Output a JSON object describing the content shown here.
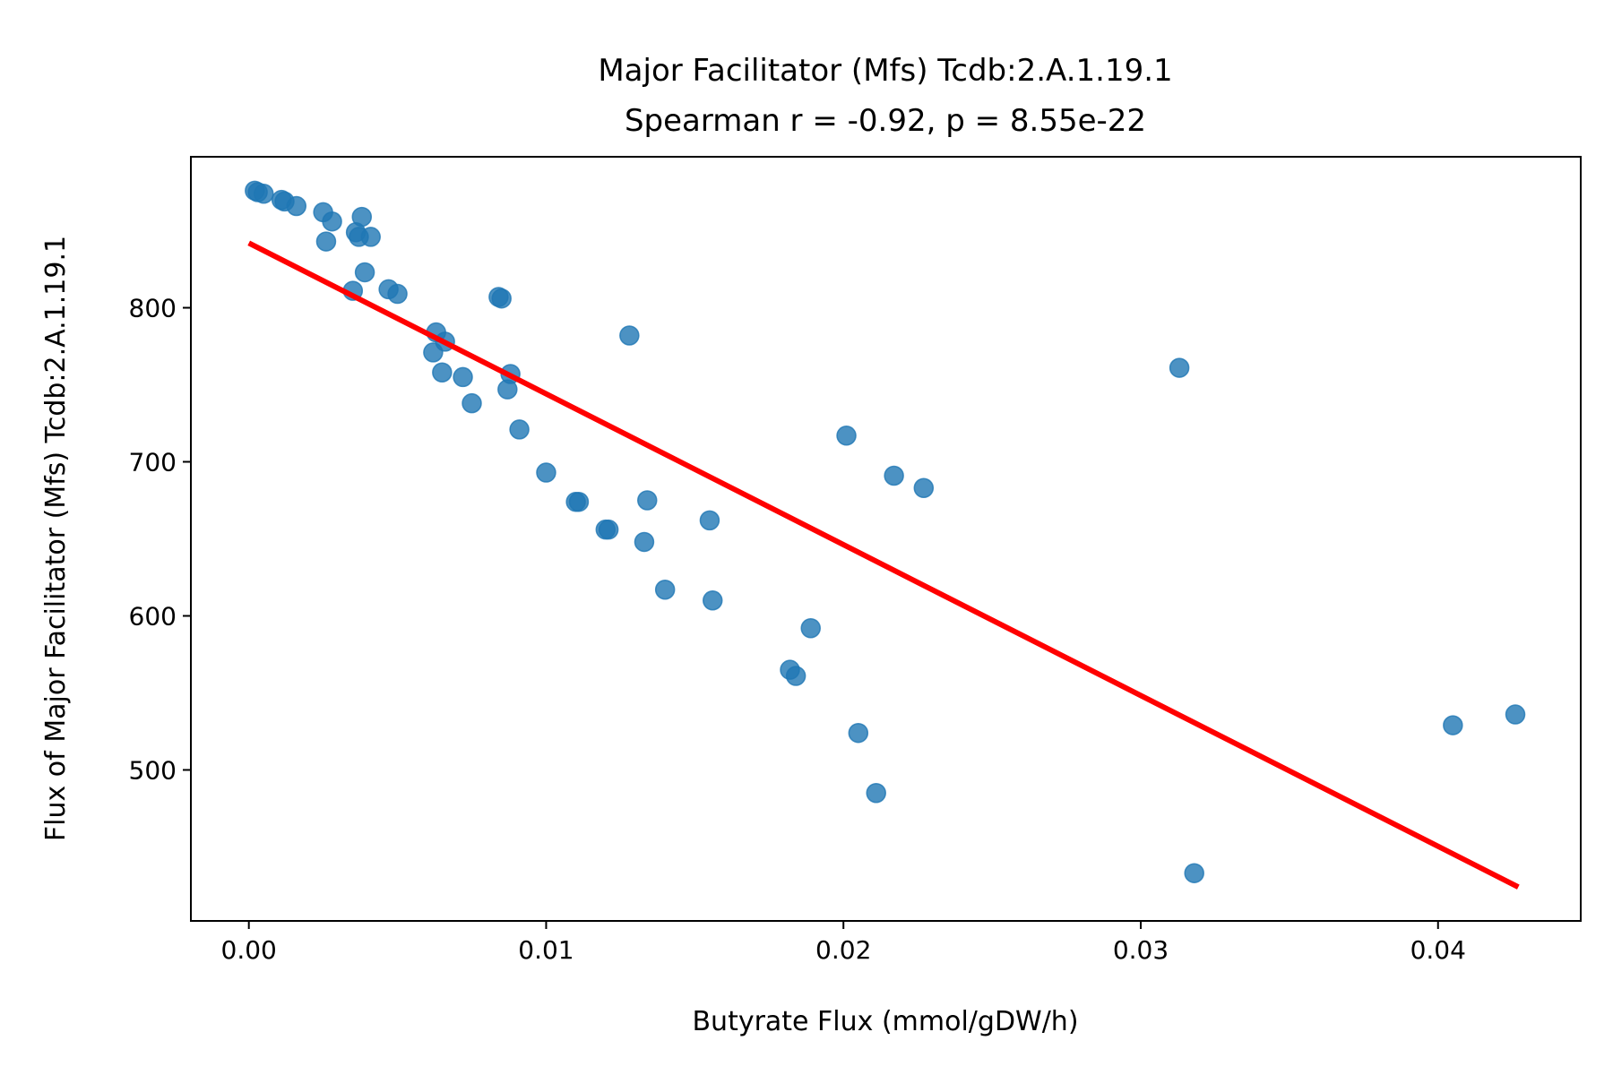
{
  "chart_data": {
    "type": "scatter",
    "title": "Major Facilitator (Mfs) Tcdb:2.A.1.19.1",
    "subtitle": "Spearman r = -0.92, p = 8.55e-22",
    "xlabel": "Butyrate Flux (mmol/gDW/h)",
    "ylabel": "Flux of Major Facilitator (Mfs) Tcdb:2.A.1.19.1",
    "xlim": [
      -0.00195,
      0.0448
    ],
    "ylim": [
      402,
      898
    ],
    "xticks": [
      0.0,
      0.01,
      0.02,
      0.03,
      0.04
    ],
    "xtick_labels": [
      "0.00",
      "0.01",
      "0.02",
      "0.03",
      "0.04"
    ],
    "yticks": [
      500,
      600,
      700,
      800
    ],
    "ytick_labels": [
      "500",
      "600",
      "700",
      "800"
    ],
    "grid": false,
    "legend": false,
    "colors": {
      "points": "#1f77b4",
      "fit_line": "#ff0000"
    },
    "series": [
      {
        "values": [
          [
            0.0002,
            876
          ],
          [
            0.0003,
            875
          ],
          [
            0.0005,
            874
          ],
          [
            0.0011,
            870
          ],
          [
            0.0012,
            869
          ],
          [
            0.0016,
            866
          ],
          [
            0.0025,
            862
          ],
          [
            0.0028,
            856
          ],
          [
            0.0038,
            859
          ],
          [
            0.0036,
            849
          ],
          [
            0.0041,
            846
          ],
          [
            0.0037,
            846
          ],
          [
            0.0026,
            843
          ],
          [
            0.0039,
            823
          ],
          [
            0.0035,
            811
          ],
          [
            0.0047,
            812
          ],
          [
            0.005,
            809
          ],
          [
            0.0084,
            807
          ],
          [
            0.0085,
            806
          ],
          [
            0.0063,
            784
          ],
          [
            0.0066,
            778
          ],
          [
            0.0062,
            771
          ],
          [
            0.0065,
            758
          ],
          [
            0.0072,
            755
          ],
          [
            0.0088,
            757
          ],
          [
            0.0087,
            747
          ],
          [
            0.0075,
            738
          ],
          [
            0.0091,
            721
          ],
          [
            0.01,
            693
          ],
          [
            0.011,
            674
          ],
          [
            0.0111,
            674
          ],
          [
            0.012,
            656
          ],
          [
            0.0121,
            656
          ],
          [
            0.0134,
            675
          ],
          [
            0.0133,
            648
          ],
          [
            0.0128,
            782
          ],
          [
            0.014,
            617
          ],
          [
            0.0155,
            662
          ],
          [
            0.0156,
            610
          ],
          [
            0.0182,
            565
          ],
          [
            0.0184,
            561
          ],
          [
            0.0189,
            592
          ],
          [
            0.0201,
            717
          ],
          [
            0.0217,
            691
          ],
          [
            0.0227,
            683
          ],
          [
            0.0205,
            524
          ],
          [
            0.0211,
            485
          ],
          [
            0.0313,
            761
          ],
          [
            0.0318,
            433
          ],
          [
            0.0405,
            529
          ],
          [
            0.0426,
            536
          ]
        ]
      }
    ],
    "fit_line": {
      "x": [
        0.0,
        0.0427
      ],
      "y": [
        842,
        424
      ]
    }
  }
}
